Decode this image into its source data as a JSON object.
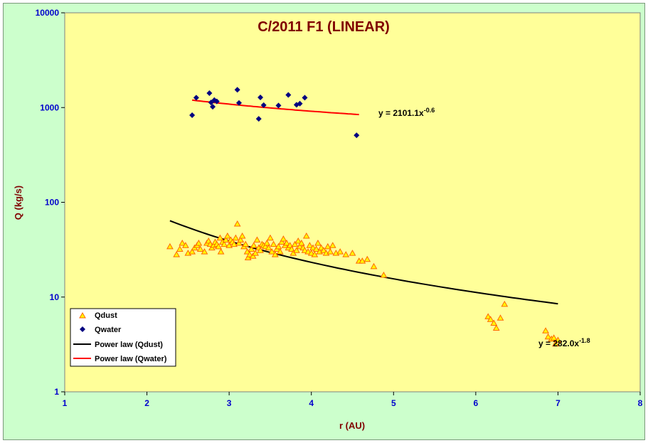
{
  "chart_data": {
    "type": "scatter",
    "title": "C/2011 F1 (LINEAR)",
    "xlabel": "r (AU)",
    "ylabel": "Q (kg/s)",
    "xlim": [
      1,
      8
    ],
    "ylim": [
      1,
      10000
    ],
    "yscale": "log",
    "x_ticks": [
      "1",
      "2",
      "3",
      "4",
      "5",
      "6",
      "7",
      "8"
    ],
    "y_ticks": [
      "1",
      "10",
      "100",
      "1000",
      "10000"
    ],
    "grid": false,
    "legend_position": "bottom-left",
    "background_color": "#ffff99",
    "outer_background_color": "#ccffcc",
    "series": [
      {
        "name": "Qdust",
        "marker": "triangle",
        "color": "#ff6600",
        "fill": "#ffff00",
        "points": [
          [
            2.28,
            34
          ],
          [
            2.36,
            28
          ],
          [
            2.4,
            32
          ],
          [
            2.43,
            37
          ],
          [
            2.47,
            35
          ],
          [
            2.5,
            29
          ],
          [
            2.55,
            30
          ],
          [
            2.58,
            33
          ],
          [
            2.61,
            35
          ],
          [
            2.63,
            37
          ],
          [
            2.65,
            32
          ],
          [
            2.7,
            30
          ],
          [
            2.73,
            37
          ],
          [
            2.75,
            39
          ],
          [
            2.77,
            36
          ],
          [
            2.79,
            33
          ],
          [
            2.81,
            35
          ],
          [
            2.83,
            38
          ],
          [
            2.85,
            36
          ],
          [
            2.87,
            34
          ],
          [
            2.89,
            42
          ],
          [
            2.9,
            30
          ],
          [
            2.92,
            38
          ],
          [
            2.94,
            36
          ],
          [
            2.96,
            40
          ],
          [
            2.98,
            44
          ],
          [
            3.0,
            35
          ],
          [
            3.02,
            40
          ],
          [
            3.04,
            38
          ],
          [
            3.06,
            36
          ],
          [
            3.08,
            42
          ],
          [
            3.1,
            59
          ],
          [
            3.12,
            37
          ],
          [
            3.14,
            40
          ],
          [
            3.16,
            44
          ],
          [
            3.18,
            34
          ],
          [
            3.2,
            36
          ],
          [
            3.22,
            30
          ],
          [
            3.23,
            26
          ],
          [
            3.25,
            28
          ],
          [
            3.27,
            32
          ],
          [
            3.29,
            27
          ],
          [
            3.3,
            35
          ],
          [
            3.32,
            29
          ],
          [
            3.34,
            40
          ],
          [
            3.36,
            33
          ],
          [
            3.38,
            31
          ],
          [
            3.4,
            36
          ],
          [
            3.42,
            35
          ],
          [
            3.44,
            34
          ],
          [
            3.46,
            37
          ],
          [
            3.48,
            33
          ],
          [
            3.5,
            42
          ],
          [
            3.52,
            30
          ],
          [
            3.54,
            36
          ],
          [
            3.56,
            28
          ],
          [
            3.58,
            32
          ],
          [
            3.6,
            34
          ],
          [
            3.62,
            30
          ],
          [
            3.64,
            38
          ],
          [
            3.66,
            41
          ],
          [
            3.68,
            35
          ],
          [
            3.7,
            37
          ],
          [
            3.72,
            33
          ],
          [
            3.74,
            35
          ],
          [
            3.76,
            32
          ],
          [
            3.78,
            29
          ],
          [
            3.8,
            36
          ],
          [
            3.82,
            31
          ],
          [
            3.84,
            39
          ],
          [
            3.86,
            34
          ],
          [
            3.88,
            37
          ],
          [
            3.9,
            33
          ],
          [
            3.92,
            31
          ],
          [
            3.94,
            44
          ],
          [
            3.96,
            30
          ],
          [
            3.98,
            35
          ],
          [
            4.0,
            29
          ],
          [
            4.02,
            33
          ],
          [
            4.04,
            28
          ],
          [
            4.06,
            32
          ],
          [
            4.08,
            37
          ],
          [
            4.1,
            30
          ],
          [
            4.12,
            33
          ],
          [
            4.15,
            31
          ],
          [
            4.18,
            29
          ],
          [
            4.2,
            34
          ],
          [
            4.23,
            30
          ],
          [
            4.26,
            35
          ],
          [
            4.3,
            29
          ],
          [
            4.35,
            30
          ],
          [
            4.42,
            28
          ],
          [
            4.5,
            29
          ],
          [
            4.58,
            24
          ],
          [
            4.62,
            24
          ],
          [
            4.68,
            25
          ],
          [
            4.76,
            21
          ],
          [
            4.88,
            17
          ],
          [
            6.15,
            6.2
          ],
          [
            6.18,
            5.8
          ],
          [
            6.22,
            5.3
          ],
          [
            6.25,
            4.7
          ],
          [
            6.3,
            6.0
          ],
          [
            6.35,
            8.4
          ],
          [
            6.85,
            4.4
          ],
          [
            6.88,
            3.8
          ],
          [
            6.92,
            3.6
          ],
          [
            6.95,
            3.7
          ],
          [
            6.97,
            3.2
          ],
          [
            7.0,
            3.5
          ]
        ]
      },
      {
        "name": "Qwater",
        "marker": "diamond",
        "color": "#000080",
        "points": [
          [
            2.55,
            830
          ],
          [
            2.6,
            1270
          ],
          [
            2.76,
            1420
          ],
          [
            2.78,
            1130
          ],
          [
            2.8,
            1020
          ],
          [
            2.82,
            1200
          ],
          [
            2.85,
            1160
          ],
          [
            3.1,
            1540
          ],
          [
            3.12,
            1120
          ],
          [
            3.36,
            760
          ],
          [
            3.38,
            1280
          ],
          [
            3.42,
            1060
          ],
          [
            3.6,
            1050
          ],
          [
            3.72,
            1360
          ],
          [
            3.82,
            1070
          ],
          [
            3.86,
            1100
          ],
          [
            3.92,
            1270
          ],
          [
            4.55,
            510
          ]
        ]
      },
      {
        "name": "Power law (Qdust)",
        "type": "line",
        "color": "#000000",
        "coef": 282.0,
        "exponent": -1.8,
        "x_range": [
          2.28,
          7.0
        ]
      },
      {
        "name": "Power law (Qwater)",
        "type": "line",
        "color": "#ff0000",
        "coef": 2101.1,
        "exponent": -0.6,
        "x_range": [
          2.55,
          4.58
        ]
      }
    ],
    "annotations": [
      {
        "text": "y = 2101.1x",
        "sup": "-0.6",
        "series": "Power law (Qwater)"
      },
      {
        "text": "y = 282.0x",
        "sup": "-1.8",
        "series": "Power law (Qdust)"
      }
    ]
  }
}
